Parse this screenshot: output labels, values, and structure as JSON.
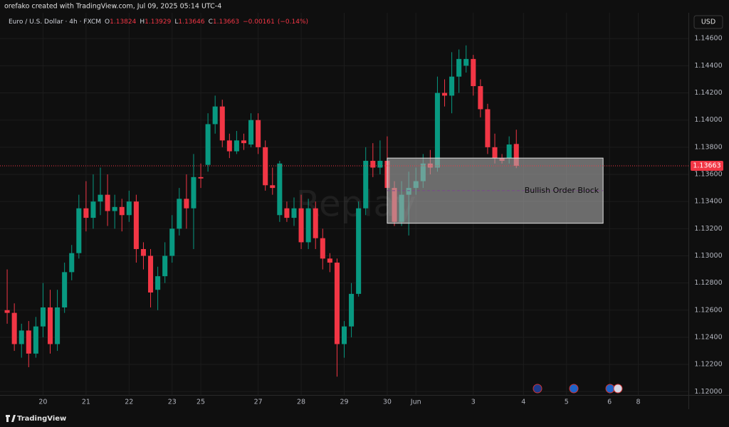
{
  "page": {
    "credit": "orefako created with TradingView.com, Jul 09, 2025 05:14 UTC-4",
    "currency": "USD",
    "brand": "TradingView"
  },
  "chart_data": {
    "type": "candlestick",
    "title": "Euro / U.S. Dollar · 4h · FXCM",
    "ohlc": [
      {
        "key": "O",
        "value": 1.13824,
        "label": "1.13824"
      },
      {
        "key": "H",
        "value": 1.13929,
        "label": "1.13929"
      },
      {
        "key": "L",
        "value": 1.13646,
        "label": "1.13646"
      },
      {
        "key": "C",
        "value": 1.13663,
        "label": "1.13663"
      }
    ],
    "change": {
      "value": -0.00161,
      "label": "−0.00161"
    },
    "change_pct": {
      "value": -0.14,
      "label": "(−0.14%)"
    },
    "last_price": {
      "value": 1.13663,
      "label": "1.13663"
    },
    "watermark": "Replay",
    "up_color": "#089981",
    "down_color": "#f23645",
    "open": [
      1.126,
      1.1258,
      1.1235,
      1.1245,
      1.1228,
      1.1248,
      1.1262,
      1.1235,
      1.1262,
      1.1288,
      1.1302,
      1.1335,
      1.1328,
      1.134,
      1.1345,
      1.1333,
      1.1336,
      1.133,
      1.134,
      1.1305,
      1.13,
      1.1275,
      1.1285,
      1.13,
      1.132,
      1.1342,
      1.1335,
      1.1358,
      1.1367,
      1.1397,
      1.141,
      1.1385,
      1.1377,
      1.1385,
      1.1382,
      1.14,
      1.138,
      1.1352,
      1.133,
      1.1335,
      1.1328,
      1.1335,
      1.131,
      1.1335,
      1.1313,
      1.1298,
      1.1295,
      1.1235,
      1.1248,
      1.1272,
      1.1335,
      1.137,
      1.1365,
      1.137,
      1.135,
      1.1325,
      1.1345,
      1.135,
      1.1355,
      1.1368,
      1.1365,
      1.142,
      1.1418,
      1.1432,
      1.144,
      1.1445,
      1.1425,
      1.1408,
      1.138,
      1.1372,
      1.1372,
      1.13824
    ],
    "high": [
      1.129,
      1.1265,
      1.125,
      1.1252,
      1.1255,
      1.128,
      1.1275,
      1.1275,
      1.1295,
      1.1308,
      1.1345,
      1.1355,
      1.136,
      1.1365,
      1.136,
      1.1345,
      1.1342,
      1.1348,
      1.1345,
      1.131,
      1.1305,
      1.1292,
      1.131,
      1.133,
      1.135,
      1.136,
      1.1375,
      1.1368,
      1.1405,
      1.1418,
      1.1415,
      1.139,
      1.1392,
      1.139,
      1.1405,
      1.1405,
      1.1385,
      1.1365,
      1.137,
      1.134,
      1.1343,
      1.1345,
      1.1342,
      1.134,
      1.132,
      1.1302,
      1.1298,
      1.1252,
      1.128,
      1.134,
      1.138,
      1.1383,
      1.1385,
      1.1388,
      1.1355,
      1.1355,
      1.1362,
      1.1365,
      1.1375,
      1.1378,
      1.1432,
      1.143,
      1.145,
      1.1452,
      1.1455,
      1.1448,
      1.143,
      1.1412,
      1.139,
      1.1375,
      1.1388,
      1.13929
    ],
    "low": [
      1.125,
      1.123,
      1.1225,
      1.1218,
      1.1225,
      1.124,
      1.1228,
      1.123,
      1.1258,
      1.1282,
      1.1298,
      1.1318,
      1.132,
      1.133,
      1.1322,
      1.132,
      1.1318,
      1.1325,
      1.1295,
      1.129,
      1.1262,
      1.126,
      1.128,
      1.1295,
      1.1315,
      1.132,
      1.1305,
      1.135,
      1.1362,
      1.139,
      1.138,
      1.1372,
      1.1375,
      1.1378,
      1.138,
      1.1375,
      1.1348,
      1.1345,
      1.1325,
      1.1325,
      1.1322,
      1.1305,
      1.1305,
      1.1305,
      1.129,
      1.1288,
      1.1211,
      1.1225,
      1.124,
      1.127,
      1.133,
      1.1358,
      1.136,
      1.1345,
      1.1322,
      1.1322,
      1.1315,
      1.1345,
      1.135,
      1.136,
      1.1362,
      1.141,
      1.1405,
      1.142,
      1.1435,
      1.1418,
      1.1402,
      1.1375,
      1.1368,
      1.1368,
      1.1368,
      1.13646
    ],
    "close": [
      1.1258,
      1.1235,
      1.1245,
      1.1228,
      1.1248,
      1.1262,
      1.1235,
      1.1262,
      1.1288,
      1.1302,
      1.1335,
      1.1328,
      1.134,
      1.1345,
      1.1333,
      1.1336,
      1.133,
      1.134,
      1.1305,
      1.13,
      1.1273,
      1.1285,
      1.13,
      1.132,
      1.1342,
      1.1335,
      1.1358,
      1.1357,
      1.1397,
      1.141,
      1.1385,
      1.1377,
      1.1385,
      1.1383,
      1.14,
      1.138,
      1.1352,
      1.135,
      1.1368,
      1.1328,
      1.1335,
      1.131,
      1.1335,
      1.1313,
      1.1298,
      1.1295,
      1.1235,
      1.1248,
      1.1272,
      1.1335,
      1.137,
      1.1365,
      1.137,
      1.135,
      1.1325,
      1.1345,
      1.135,
      1.1355,
      1.1368,
      1.1365,
      1.142,
      1.1418,
      1.1432,
      1.1445,
      1.1445,
      1.1425,
      1.1408,
      1.138,
      1.1372,
      1.137,
      1.1382,
      1.13663
    ],
    "xlim": [
      -1,
      95
    ],
    "xticks": [
      {
        "value": 5,
        "label": "20"
      },
      {
        "value": 11,
        "label": "21"
      },
      {
        "value": 17,
        "label": "22"
      },
      {
        "value": 23,
        "label": "23"
      },
      {
        "value": 27,
        "label": "25"
      },
      {
        "value": 35,
        "label": "27"
      },
      {
        "value": 41,
        "label": "28"
      },
      {
        "value": 47,
        "label": "29"
      },
      {
        "value": 53,
        "label": "30"
      },
      {
        "value": 57,
        "label": "Jun"
      },
      {
        "value": 65,
        "label": "3"
      },
      {
        "value": 72,
        "label": "4"
      },
      {
        "value": 78,
        "label": "5"
      },
      {
        "value": 84,
        "label": "6"
      },
      {
        "value": 88,
        "label": "8"
      }
    ],
    "ylim": [
      1.1197,
      1.1479
    ],
    "yticks": [
      {
        "value": 1.12,
        "label": "1.12000"
      },
      {
        "value": 1.122,
        "label": "1.12200"
      },
      {
        "value": 1.124,
        "label": "1.12400"
      },
      {
        "value": 1.126,
        "label": "1.12600"
      },
      {
        "value": 1.128,
        "label": "1.12800"
      },
      {
        "value": 1.13,
        "label": "1.13000"
      },
      {
        "value": 1.132,
        "label": "1.13200"
      },
      {
        "value": 1.134,
        "label": "1.13400"
      },
      {
        "value": 1.136,
        "label": "1.13600"
      },
      {
        "value": 1.138,
        "label": "1.13800"
      },
      {
        "value": 1.14,
        "label": "1.14000"
      },
      {
        "value": 1.142,
        "label": "1.14200"
      },
      {
        "value": 1.144,
        "label": "1.14400"
      },
      {
        "value": 1.146,
        "label": "1.14600"
      }
    ],
    "grid": true,
    "annotations": [
      {
        "text": "Bullish Order Block",
        "x0": 53,
        "x1": 83.1,
        "y0": 1.1324,
        "y1": 1.1372
      }
    ]
  }
}
